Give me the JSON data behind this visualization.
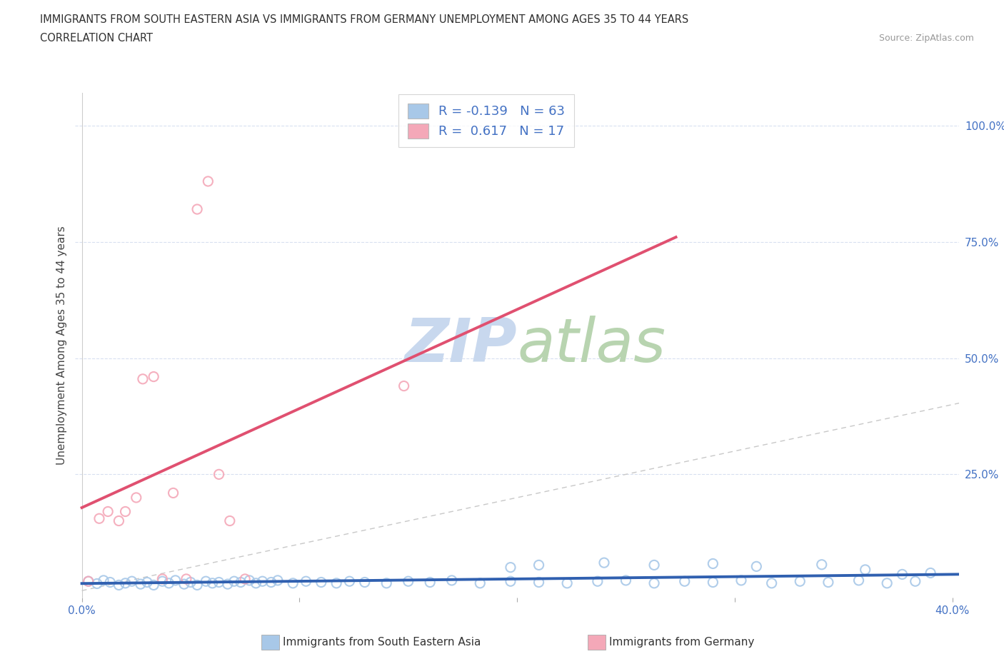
{
  "title_line1": "IMMIGRANTS FROM SOUTH EASTERN ASIA VS IMMIGRANTS FROM GERMANY UNEMPLOYMENT AMONG AGES 35 TO 44 YEARS",
  "title_line2": "CORRELATION CHART",
  "source_text": "Source: ZipAtlas.com",
  "ylabel": "Unemployment Among Ages 35 to 44 years",
  "xlim": [
    -0.003,
    0.403
  ],
  "ylim": [
    -0.015,
    1.07
  ],
  "xtick_positions": [
    0.0,
    0.1,
    0.2,
    0.3,
    0.4
  ],
  "xtick_labels": [
    "0.0%",
    "",
    "",
    "",
    "40.0%"
  ],
  "ytick_positions": [
    0.0,
    0.25,
    0.5,
    0.75,
    1.0
  ],
  "ytick_labels": [
    "",
    "25.0%",
    "50.0%",
    "75.0%",
    "100.0%"
  ],
  "legend_label1": "Immigrants from South Eastern Asia",
  "legend_label2": "Immigrants from Germany",
  "R1": -0.139,
  "N1": 63,
  "R2": 0.617,
  "N2": 17,
  "color1": "#a8c8e8",
  "color2": "#f4a8b8",
  "trendline1_color": "#3060b0",
  "trendline2_color": "#e05070",
  "refline_color": "#c8c8c8",
  "text_color": "#4472c4",
  "title_color": "#303030",
  "grid_color": "#d8e0f0",
  "watermark_zip_color": "#c8d8ee",
  "watermark_atlas_color": "#b8d4b0",
  "blue_x": [
    0.003,
    0.007,
    0.01,
    0.013,
    0.017,
    0.02,
    0.023,
    0.027,
    0.03,
    0.033,
    0.037,
    0.04,
    0.043,
    0.047,
    0.05,
    0.053,
    0.057,
    0.06,
    0.063,
    0.067,
    0.07,
    0.073,
    0.077,
    0.08,
    0.083,
    0.087,
    0.09,
    0.097,
    0.103,
    0.11,
    0.117,
    0.123,
    0.13,
    0.14,
    0.15,
    0.16,
    0.17,
    0.183,
    0.197,
    0.21,
    0.223,
    0.237,
    0.25,
    0.263,
    0.277,
    0.29,
    0.303,
    0.317,
    0.33,
    0.343,
    0.357,
    0.37,
    0.383,
    0.197,
    0.21,
    0.24,
    0.263,
    0.29,
    0.31,
    0.34,
    0.36,
    0.377,
    0.39
  ],
  "blue_y": [
    0.02,
    0.015,
    0.022,
    0.018,
    0.012,
    0.016,
    0.02,
    0.014,
    0.018,
    0.012,
    0.02,
    0.016,
    0.022,
    0.014,
    0.018,
    0.012,
    0.02,
    0.016,
    0.018,
    0.014,
    0.02,
    0.018,
    0.022,
    0.016,
    0.02,
    0.018,
    0.022,
    0.016,
    0.02,
    0.018,
    0.016,
    0.02,
    0.018,
    0.016,
    0.02,
    0.018,
    0.022,
    0.016,
    0.02,
    0.018,
    0.016,
    0.02,
    0.022,
    0.016,
    0.02,
    0.018,
    0.022,
    0.016,
    0.02,
    0.018,
    0.022,
    0.016,
    0.02,
    0.05,
    0.055,
    0.06,
    0.055,
    0.058,
    0.052,
    0.056,
    0.045,
    0.035,
    0.038
  ],
  "pink_x": [
    0.003,
    0.008,
    0.012,
    0.017,
    0.02,
    0.025,
    0.028,
    0.033,
    0.037,
    0.042,
    0.048,
    0.053,
    0.058,
    0.063,
    0.068,
    0.075,
    0.148
  ],
  "pink_y": [
    0.02,
    0.155,
    0.17,
    0.15,
    0.17,
    0.2,
    0.455,
    0.46,
    0.025,
    0.21,
    0.025,
    0.82,
    0.88,
    0.25,
    0.15,
    0.025,
    0.44
  ]
}
